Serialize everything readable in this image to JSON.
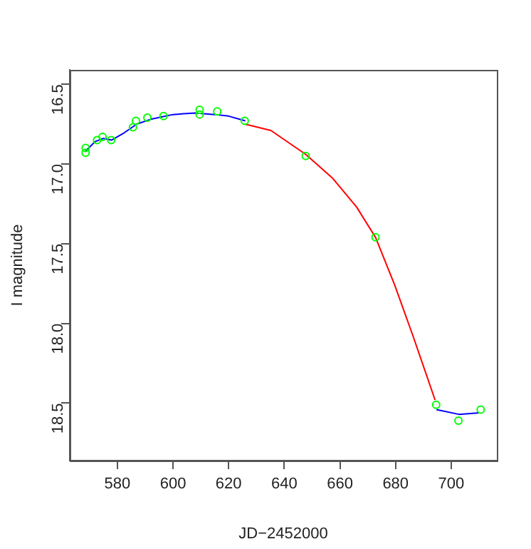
{
  "chart_data": {
    "type": "scatter",
    "xlabel": "JD−2452000",
    "ylabel": "I magnitude",
    "xlim": [
      562.9,
      716.4
    ],
    "ylim": [
      18.86,
      16.41
    ],
    "xticks": [
      580,
      600,
      620,
      640,
      660,
      680,
      700
    ],
    "yticks": [
      16.5,
      {
        "value": 17,
        "label": "17.0"
      },
      17.5,
      {
        "value": 18,
        "label": "18.0"
      },
      18.5
    ],
    "grid": false,
    "legend": false,
    "series": [
      {
        "marker": "circle",
        "color": "#00ff00",
        "x": [
          568.6,
          568.6,
          572.7,
          574.7,
          577.8,
          585.6,
          586.7,
          590.8,
          596.6,
          609.6,
          609.6,
          615.9,
          625.8,
          647.7,
          672.8,
          694.6,
          702.6,
          710.6
        ],
        "values": [
          16.9,
          16.93,
          16.85,
          16.83,
          16.85,
          16.77,
          16.73,
          16.71,
          16.7,
          16.66,
          16.69,
          16.67,
          16.73,
          16.95,
          17.46,
          18.51,
          18.61,
          18.54
        ]
      },
      {
        "type": "line",
        "marker": "none",
        "color": "#0000ff",
        "x": [
          568.6,
          572,
          575,
          578,
          582,
          587,
          592,
          600,
          608,
          615,
          620,
          626
        ],
        "values": [
          16.92,
          16.86,
          16.84,
          16.85,
          16.81,
          16.75,
          16.72,
          16.69,
          16.68,
          16.69,
          16.7,
          16.73
        ]
      },
      {
        "type": "line",
        "marker": "none",
        "color": "#ff0000",
        "x": [
          625.8,
          635.2,
          647.7,
          657.4,
          666,
          672.8,
          679.7,
          686.5,
          694.2
        ],
        "values": [
          16.75,
          16.79,
          16.94,
          17.09,
          17.27,
          17.46,
          17.76,
          18.09,
          18.48
        ]
      },
      {
        "type": "line",
        "marker": "none",
        "color": "#0000ff",
        "x": [
          694.7,
          702.8,
          710.1
        ],
        "values": [
          18.54,
          18.57,
          18.56
        ]
      }
    ]
  }
}
